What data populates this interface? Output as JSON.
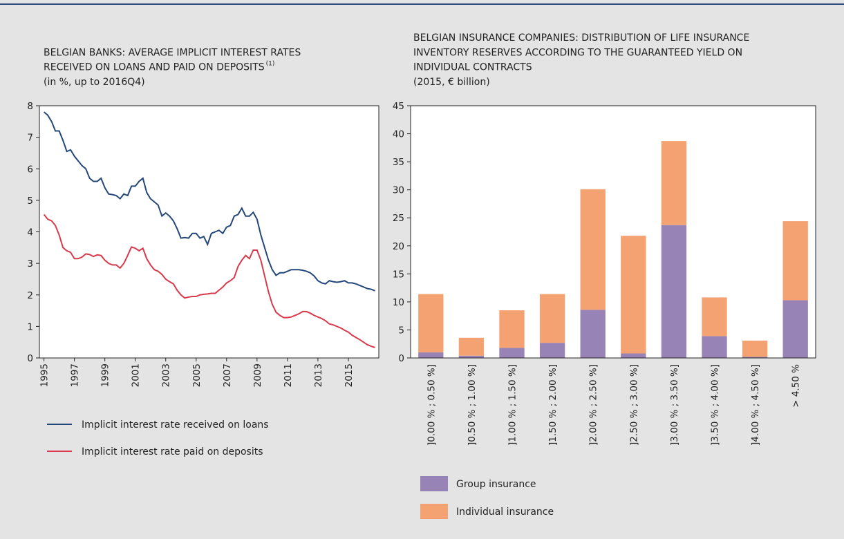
{
  "chart_data": [
    {
      "type": "line",
      "title_lines": [
        "BELGIAN BANKS: AVERAGE IMPLICIT INTEREST RATES",
        "RECEIVED ON LOANS AND PAID ON DEPOSITS"
      ],
      "title_note": "(1)",
      "subtitle": "(in %, up to 2016Q4)",
      "x": [
        1995,
        1995.25,
        1995.5,
        1995.75,
        1996,
        1996.25,
        1996.5,
        1996.75,
        1997,
        1997.25,
        1997.5,
        1997.75,
        1998,
        1998.25,
        1998.5,
        1998.75,
        1999,
        1999.25,
        1999.5,
        1999.75,
        2000,
        2000.25,
        2000.5,
        2000.75,
        2001,
        2001.25,
        2001.5,
        2001.75,
        2002,
        2002.25,
        2002.5,
        2002.75,
        2003,
        2003.25,
        2003.5,
        2003.75,
        2004,
        2004.25,
        2004.5,
        2004.75,
        2005,
        2005.25,
        2005.5,
        2005.75,
        2006,
        2006.25,
        2006.5,
        2006.75,
        2007,
        2007.25,
        2007.5,
        2007.75,
        2008,
        2008.25,
        2008.5,
        2008.75,
        2009,
        2009.25,
        2009.5,
        2009.75,
        2010,
        2010.25,
        2010.5,
        2010.75,
        2011,
        2011.25,
        2011.5,
        2011.75,
        2012,
        2012.25,
        2012.5,
        2012.75,
        2013,
        2013.25,
        2013.5,
        2013.75,
        2014,
        2014.25,
        2014.5,
        2014.75,
        2015,
        2015.25,
        2015.5,
        2015.75,
        2016,
        2016.25,
        2016.5,
        2016.75
      ],
      "series": [
        {
          "name": "Implicit interest rate received on loans",
          "color": "#24477a",
          "values": [
            7.8,
            7.7,
            7.5,
            7.2,
            7.2,
            6.9,
            6.55,
            6.6,
            6.4,
            6.25,
            6.1,
            6.0,
            5.7,
            5.6,
            5.6,
            5.7,
            5.4,
            5.2,
            5.18,
            5.15,
            5.05,
            5.2,
            5.15,
            5.45,
            5.45,
            5.6,
            5.7,
            5.25,
            5.05,
            4.95,
            4.85,
            4.5,
            4.6,
            4.5,
            4.35,
            4.1,
            3.8,
            3.82,
            3.8,
            3.95,
            3.95,
            3.8,
            3.85,
            3.6,
            3.95,
            4.0,
            4.05,
            3.95,
            4.15,
            4.2,
            4.5,
            4.55,
            4.75,
            4.5,
            4.5,
            4.62,
            4.4,
            3.9,
            3.5,
            3.1,
            2.8,
            2.62,
            2.7,
            2.7,
            2.75,
            2.8,
            2.8,
            2.8,
            2.78,
            2.75,
            2.7,
            2.6,
            2.45,
            2.38,
            2.35,
            2.45,
            2.42,
            2.4,
            2.42,
            2.45,
            2.38,
            2.38,
            2.35,
            2.3,
            2.25,
            2.2,
            2.18,
            2.13
          ]
        },
        {
          "name": "Implicit interest rate paid on deposits",
          "color": "#d9394a",
          "values": [
            4.55,
            4.4,
            4.35,
            4.2,
            3.9,
            3.5,
            3.4,
            3.35,
            3.15,
            3.15,
            3.2,
            3.3,
            3.28,
            3.22,
            3.27,
            3.25,
            3.1,
            3.0,
            2.95,
            2.95,
            2.85,
            3.0,
            3.25,
            3.52,
            3.48,
            3.4,
            3.48,
            3.15,
            2.95,
            2.8,
            2.75,
            2.65,
            2.5,
            2.42,
            2.35,
            2.15,
            2.0,
            1.9,
            1.93,
            1.95,
            1.95,
            2.0,
            2.02,
            2.03,
            2.05,
            2.05,
            2.15,
            2.25,
            2.38,
            2.45,
            2.55,
            2.9,
            3.1,
            3.25,
            3.15,
            3.42,
            3.42,
            3.1,
            2.6,
            2.1,
            1.7,
            1.45,
            1.35,
            1.28,
            1.28,
            1.3,
            1.35,
            1.4,
            1.47,
            1.47,
            1.42,
            1.35,
            1.3,
            1.25,
            1.18,
            1.08,
            1.05,
            1.0,
            0.95,
            0.88,
            0.82,
            0.72,
            0.65,
            0.58,
            0.5,
            0.42,
            0.37,
            0.33
          ]
        }
      ],
      "xlim": [
        1994.7,
        2017
      ],
      "xticks": [
        1995,
        1997,
        1999,
        2001,
        2003,
        2005,
        2007,
        2009,
        2011,
        2013,
        2015
      ],
      "ylim": [
        0,
        8
      ],
      "yticks": [
        0,
        1,
        2,
        3,
        4,
        5,
        6,
        7,
        8
      ]
    },
    {
      "type": "bar",
      "stacked": true,
      "title_lines": [
        "BELGIAN INSURANCE COMPANIES: DISTRIBUTION OF LIFE INSURANCE",
        "INVENTORY RESERVES ACCORDING TO THE GUARANTEED YIELD ON",
        "INDIVIDUAL CONTRACTS"
      ],
      "subtitle": "(2015, € billion)",
      "categories": [
        "]0.00 % ; 0.50 %]",
        "]0.50 % ; 1.00 %]",
        "]1.00 % ; 1.50 %]",
        "]1.50 % ; 2.00 %]",
        "]2.00 % ; 2.50 %]",
        "]2.50 % ; 3.00 %]",
        "]3.00 % ; 3.50 %]",
        "]3.50 % ; 4.00 %]",
        "]4.00 % ; 4.50 %]",
        "> 4.50 %"
      ],
      "series": [
        {
          "name": "Group insurance",
          "color": "#9883b6",
          "values": [
            1.0,
            0.4,
            1.8,
            2.7,
            8.6,
            0.8,
            23.7,
            3.9,
            0.2,
            10.3
          ]
        },
        {
          "name": "Individual insurance",
          "color": "#f5a273",
          "values": [
            10.4,
            3.2,
            6.7,
            8.7,
            21.5,
            21.0,
            15.0,
            6.9,
            2.9,
            14.1
          ]
        }
      ],
      "ylim": [
        0,
        45
      ],
      "yticks": [
        0,
        5,
        10,
        15,
        20,
        25,
        30,
        35,
        40,
        45
      ]
    }
  ]
}
